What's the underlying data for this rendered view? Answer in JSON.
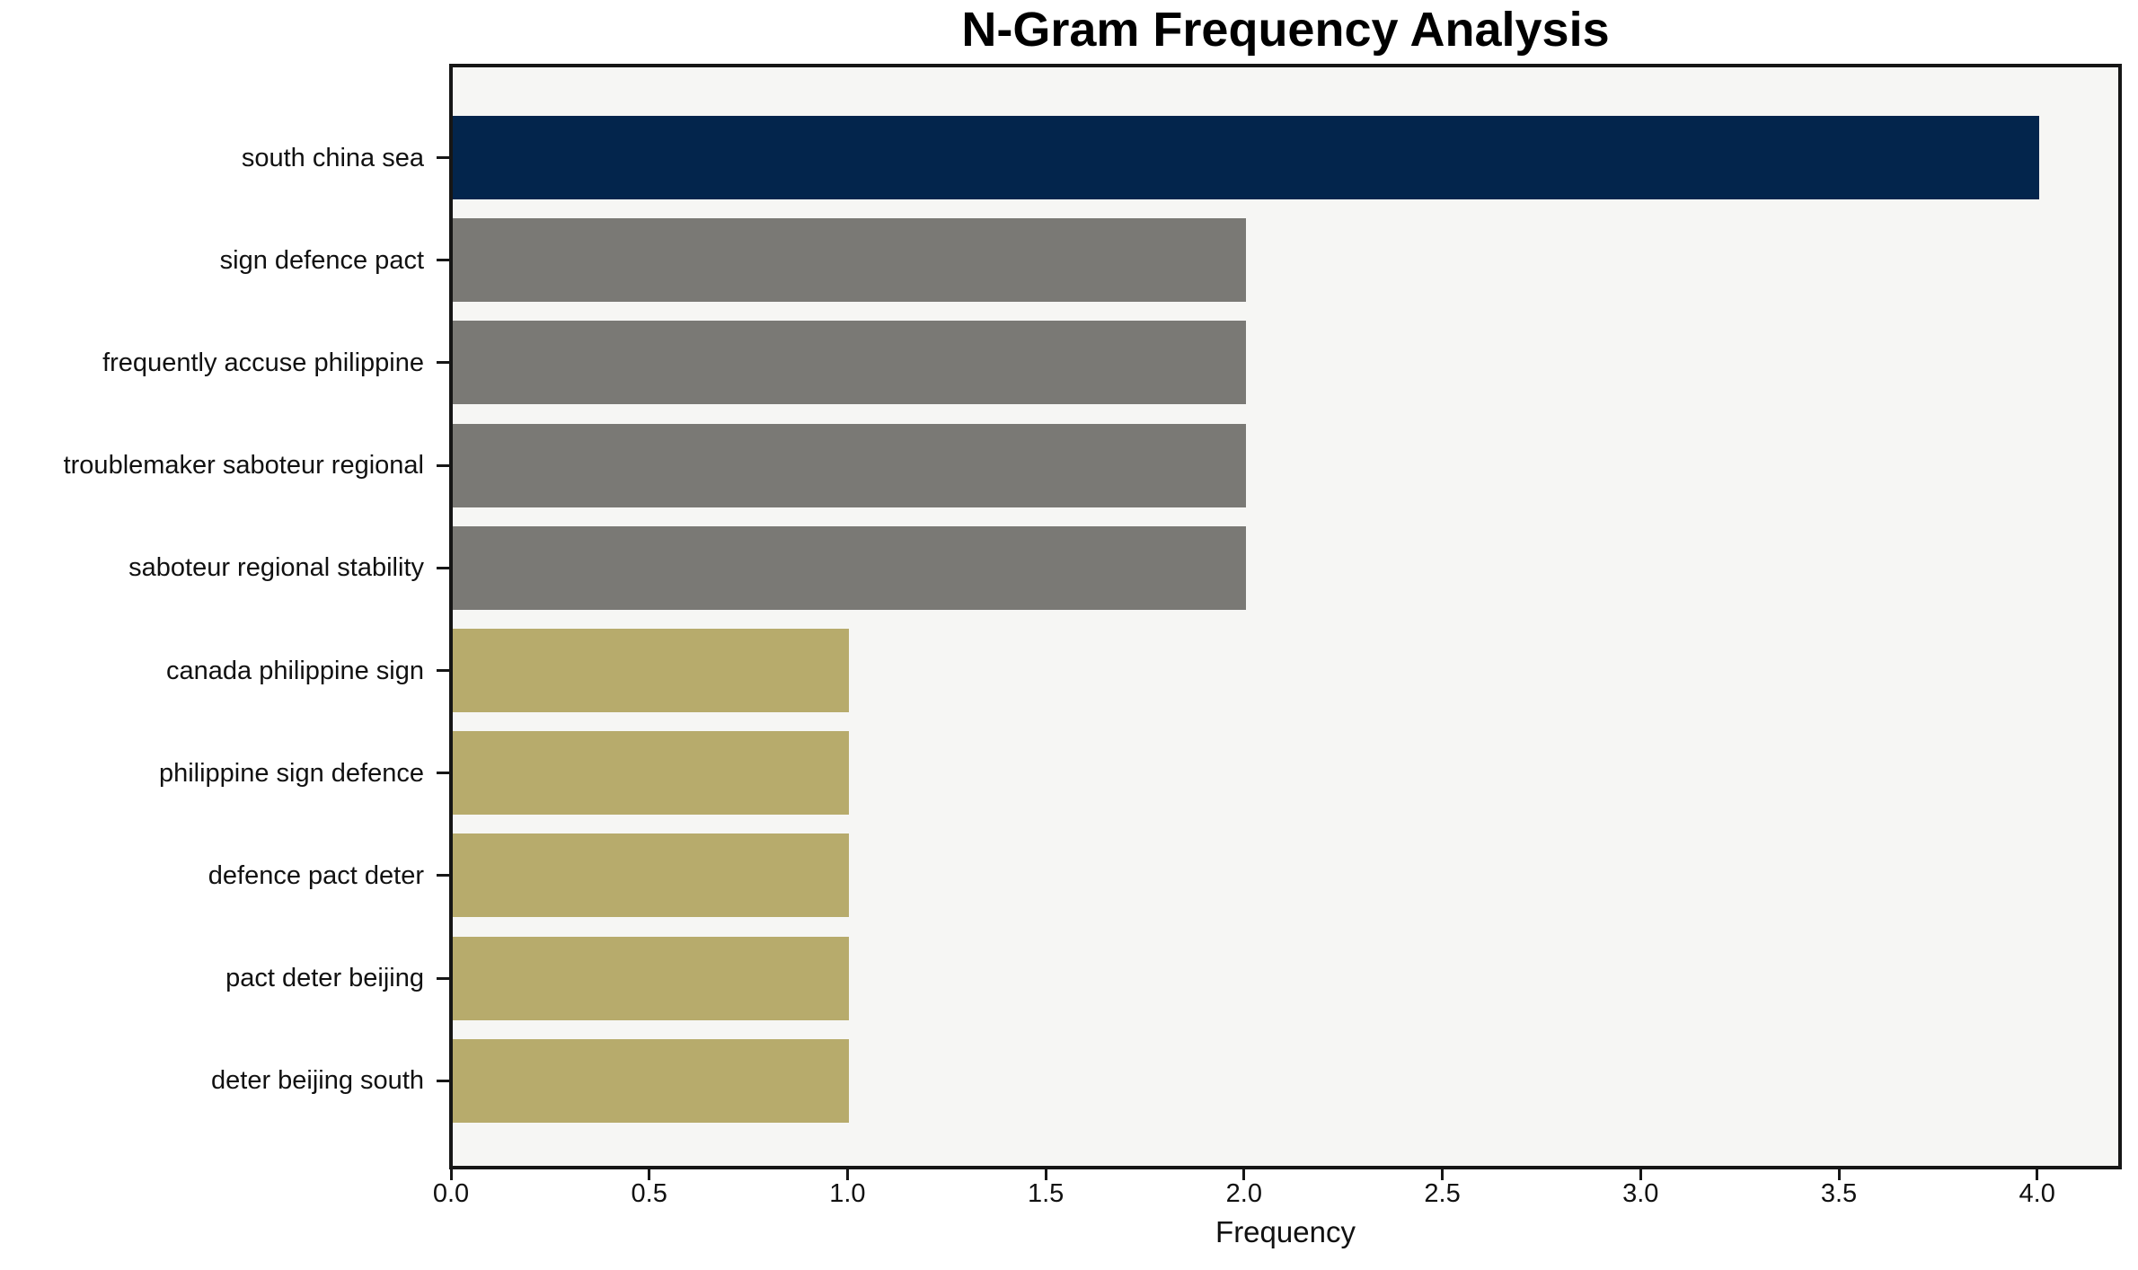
{
  "figure": {
    "background": "#ffffff"
  },
  "chart_data": {
    "type": "bar",
    "orientation": "horizontal",
    "title": "N-Gram Frequency Analysis",
    "xlabel": "Frequency",
    "ylabel": "",
    "categories": [
      "south china sea",
      "sign defence pact",
      "frequently accuse philippine",
      "troublemaker saboteur regional",
      "saboteur regional stability",
      "canada philippine sign",
      "philippine sign defence",
      "defence pact deter",
      "pact deter beijing",
      "deter beijing south"
    ],
    "values": [
      4.0,
      2.0,
      2.0,
      2.0,
      2.0,
      1.0,
      1.0,
      1.0,
      1.0,
      1.0
    ],
    "bar_colors": [
      "#03254c",
      "#7a7975",
      "#7a7975",
      "#7a7975",
      "#7a7975",
      "#b7ab6c",
      "#b7ab6c",
      "#b7ab6c",
      "#b7ab6c",
      "#b7ab6c"
    ],
    "palette": {
      "navy": "#03254c",
      "gray": "#7a7975",
      "khaki": "#b7ab6c"
    },
    "xlim": [
      0,
      4.2
    ],
    "xtick_labels": [
      "0.0",
      "0.5",
      "1.0",
      "1.5",
      "2.0",
      "2.5",
      "3.0",
      "3.5",
      "4.0"
    ],
    "xtick_values": [
      0,
      0.5,
      1.0,
      1.5,
      2.0,
      2.5,
      3.0,
      3.5,
      4.0
    ],
    "grid": false,
    "legend": null,
    "plot_background": "#f6f6f4",
    "spine_color": "#161616"
  }
}
